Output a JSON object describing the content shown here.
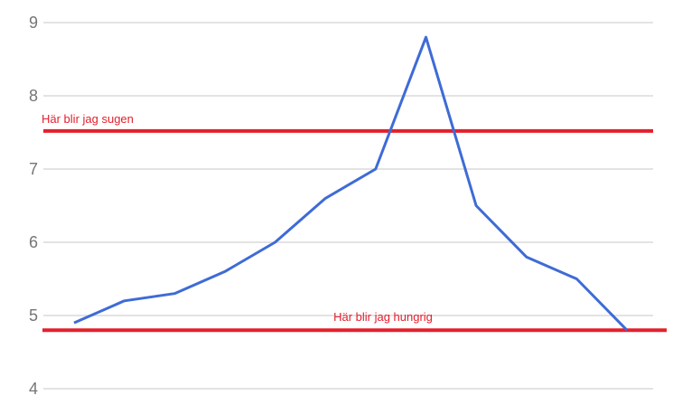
{
  "chart_data": {
    "type": "line",
    "title": "",
    "xlabel": "",
    "ylabel": "",
    "x_axis_labels_visible": false,
    "ylim": [
      4,
      9
    ],
    "y_ticks": [
      9,
      8,
      7,
      6,
      5,
      4
    ],
    "grid": true,
    "legend_position": "none",
    "series": [
      {
        "name": "main-series",
        "values": [
          4.9,
          5.2,
          5.3,
          5.6,
          6.0,
          6.6,
          7.0,
          8.8,
          6.5,
          5.8,
          5.5,
          4.8
        ],
        "color": "#3e6bd6"
      }
    ],
    "annotations": [
      {
        "label": "Här blir jag sugen",
        "value": 7.52,
        "color": "#e3202c"
      },
      {
        "label": "Här blir jag hungrig",
        "value": 4.8,
        "color": "#e3202c"
      }
    ],
    "colors": {
      "grid": "#e3e3e3",
      "tick_label": "#757575",
      "threshold": "#e3202c",
      "background": "#ffffff"
    }
  }
}
